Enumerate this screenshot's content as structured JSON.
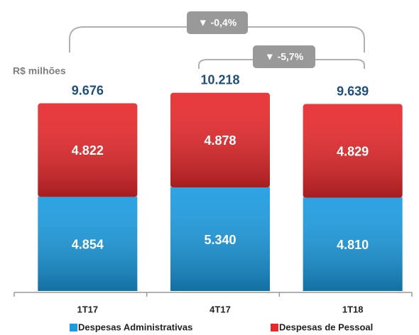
{
  "chart_data": {
    "type": "stacked_bar",
    "unit_label": "R$ milhões",
    "categories": [
      "1T17",
      "4T17",
      "1T18"
    ],
    "series": [
      {
        "name": "Despesas Administrativas",
        "color": "#1a9be0",
        "values": [
          4854,
          5340,
          4810
        ],
        "value_labels": [
          "4.854",
          "5.340",
          "4.810"
        ]
      },
      {
        "name": "Despesas de Pessoal",
        "color": "#e8282b",
        "values": [
          4822,
          4878,
          4829
        ],
        "value_labels": [
          "4.822",
          "4.878",
          "4.829"
        ]
      }
    ],
    "totals": {
      "values": [
        9676,
        10218,
        9639
      ],
      "value_labels": [
        "9.676",
        "10.218",
        "9.639"
      ]
    },
    "annotations": [
      "▼ -0,4%",
      "▼ -5,7%"
    ],
    "ylim": [
      0,
      15000
    ],
    "legend": "bottom"
  }
}
